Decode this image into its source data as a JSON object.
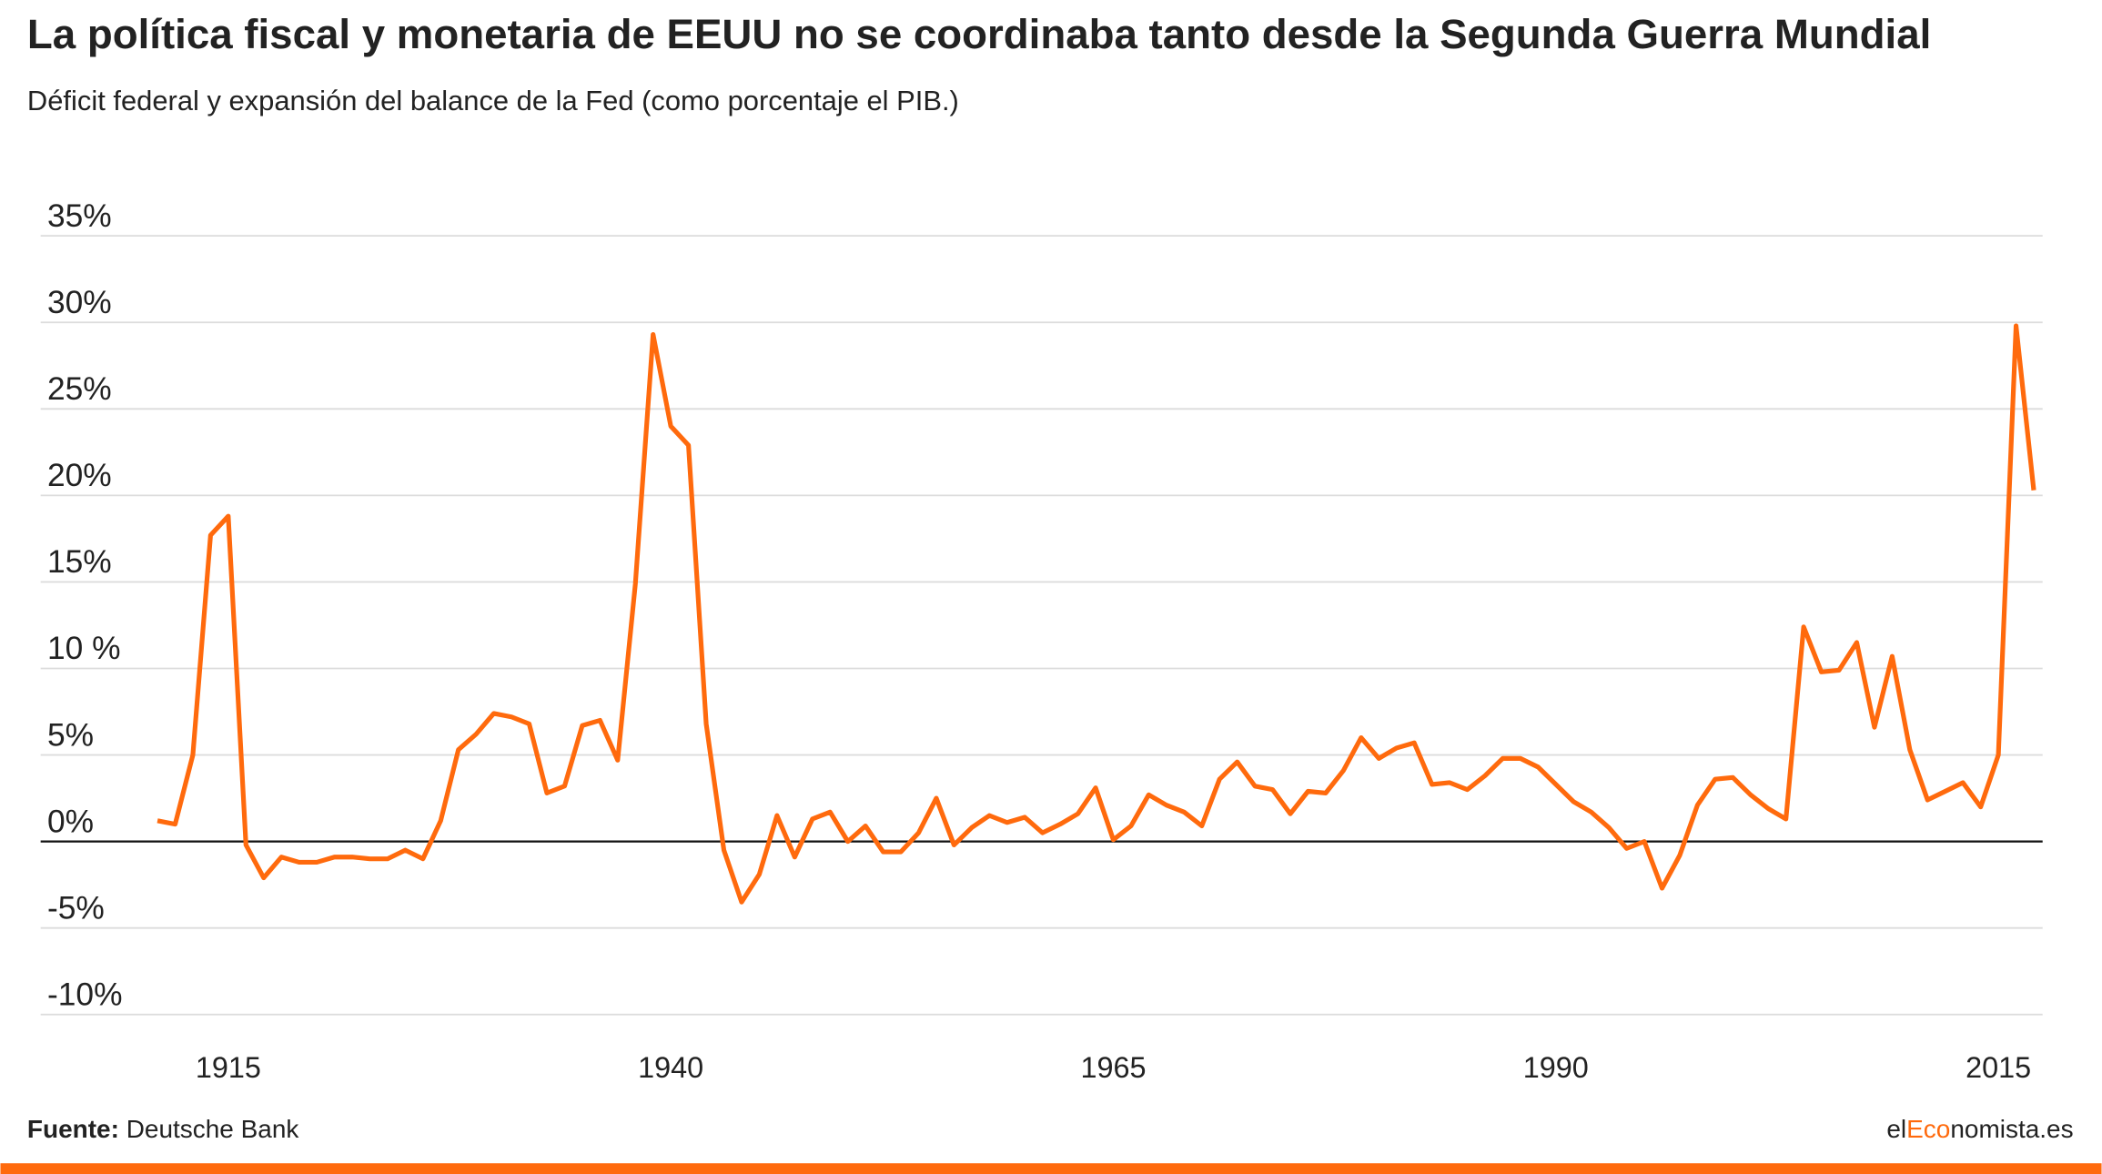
{
  "chart_data": {
    "type": "line",
    "title": "La política fiscal y monetaria de EEUU no se coordinaba tanto desde la Segunda Guerra Mundial",
    "subtitle": "Déficit federal y expansión del balance de la Fed (como porcentaje el PIB.)",
    "source_label": "Fuente:",
    "source": "Deutsche Bank",
    "brand": [
      "el",
      "Eco",
      "nomista.es"
    ],
    "x": [
      1911,
      1912,
      1913,
      1914,
      1915,
      1916,
      1917,
      1918,
      1919,
      1920,
      1921,
      1922,
      1923,
      1924,
      1925,
      1926,
      1927,
      1928,
      1929,
      1930,
      1931,
      1932,
      1933,
      1934,
      1935,
      1936,
      1937,
      1938,
      1939,
      1940,
      1941,
      1942,
      1943,
      1944,
      1945,
      1946,
      1947,
      1948,
      1949,
      1950,
      1951,
      1952,
      1953,
      1954,
      1955,
      1956,
      1957,
      1958,
      1959,
      1960,
      1961,
      1962,
      1963,
      1964,
      1965,
      1966,
      1967,
      1968,
      1969,
      1970,
      1971,
      1972,
      1973,
      1974,
      1975,
      1976,
      1977,
      1978,
      1979,
      1980,
      1981,
      1982,
      1983,
      1984,
      1985,
      1986,
      1987,
      1988,
      1989,
      1990,
      1991,
      1992,
      1993,
      1994,
      1995,
      1996,
      1997,
      1998,
      1999,
      2000,
      2001,
      2002,
      2003,
      2004,
      2005,
      2006,
      2007,
      2008,
      2009,
      2010,
      2011,
      2012,
      2013,
      2014,
      2015,
      2016,
      2017
    ],
    "series": [
      {
        "color": "#ff6a0d",
        "values": [
          1.2,
          1.0,
          5.0,
          17.7,
          18.8,
          -0.2,
          -2.1,
          -0.9,
          -1.2,
          -1.2,
          -0.9,
          -0.9,
          -1.0,
          -1.0,
          -0.5,
          -1.0,
          1.2,
          5.3,
          6.2,
          7.4,
          7.2,
          6.8,
          2.8,
          3.2,
          6.7,
          7.0,
          4.7,
          14.9,
          29.3,
          24.0,
          22.9,
          6.8,
          -0.5,
          -3.5,
          -1.9,
          1.5,
          -0.9,
          1.3,
          1.7,
          0,
          0.9,
          -0.6,
          -0.6,
          0.5,
          2.5,
          -0.2,
          0.8,
          1.5,
          1.1,
          1.4,
          0.5,
          1.0,
          1.6,
          3.1,
          0.1,
          0.9,
          2.7,
          2.1,
          1.7,
          0.9,
          3.6,
          4.6,
          3.2,
          3.0,
          1.6,
          2.9,
          2.8,
          4.1,
          6.0,
          4.8,
          5.4,
          5.7,
          3.3,
          3.4,
          3.0,
          3.8,
          4.8,
          4.8,
          4.3,
          3.3,
          2.3,
          1.7,
          0.8,
          -0.4,
          0,
          -2.7,
          -0.8,
          2.1,
          3.6,
          3.7,
          2.7,
          1.9,
          1.3,
          12.4,
          9.8,
          9.9,
          11.5,
          6.6,
          10.7,
          5.3,
          2.4,
          2.9,
          3.4,
          2.0,
          5.0,
          29.8,
          20.3
        ]
      }
    ],
    "xlim": [
      1904.4,
      2017.5
    ],
    "xticks": [
      1915,
      1940,
      1965,
      1990,
      2015
    ],
    "ylim": [
      -10,
      35
    ],
    "yticks": [
      {
        "value": 35,
        "label": "35%"
      },
      {
        "value": 30,
        "label": "30%"
      },
      {
        "value": 25,
        "label": "25%"
      },
      {
        "value": 20,
        "label": "20%"
      },
      {
        "value": 15,
        "label": "15%"
      },
      {
        "value": 10,
        "label": "10 %"
      },
      {
        "value": 5,
        "label": "5%"
      },
      {
        "value": 0,
        "label": "0%"
      },
      {
        "value": -5,
        "label": "-5%"
      },
      {
        "value": -10,
        "label": "-10%"
      }
    ],
    "grid": true
  }
}
